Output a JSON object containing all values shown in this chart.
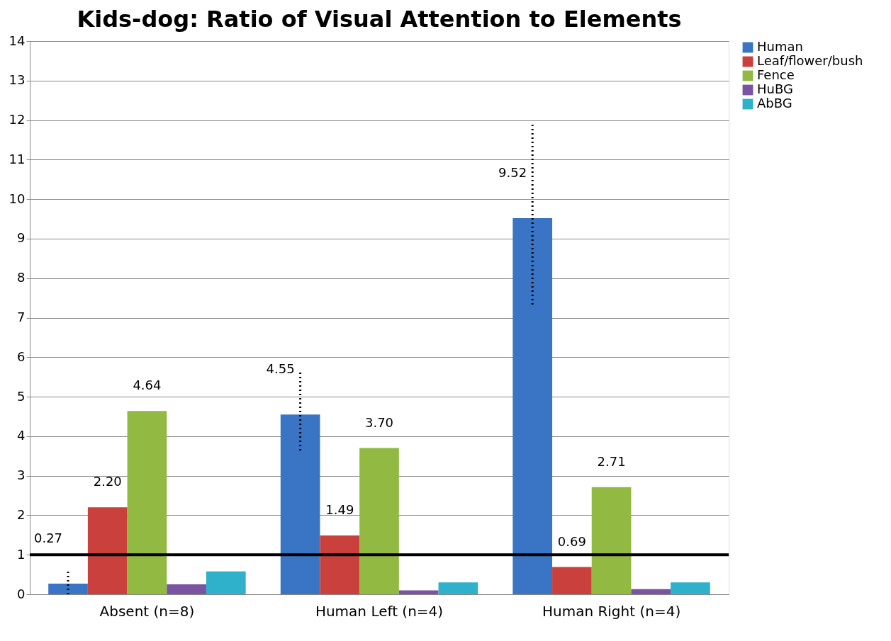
{
  "chart_data": {
    "type": "bar",
    "title": "Kids-dog: Ratio of Visual Attention to Elements",
    "categories": [
      "Absent (n=8)",
      "Human Left (n=4)",
      "Human Right (n=4)"
    ],
    "series": [
      {
        "name": "Human",
        "color": "#3a74c4",
        "values": [
          0.27,
          4.55,
          9.52
        ],
        "errors": [
          [
            0,
            0.57
          ],
          [
            3.64,
            5.66
          ],
          [
            7.33,
            11.88
          ]
        ],
        "value_labels": [
          "0.27",
          "4.55",
          "9.52"
        ]
      },
      {
        "name": "Leaf/flower/bush",
        "color": "#c9403c",
        "values": [
          2.2,
          1.49,
          0.69
        ],
        "value_labels": [
          "2.20",
          "1.49",
          "0.69"
        ]
      },
      {
        "name": "Fence",
        "color": "#92b941",
        "values": [
          4.64,
          3.7,
          2.71
        ],
        "value_labels": [
          "4.64",
          "3.70",
          "2.71"
        ]
      },
      {
        "name": "HuBG",
        "color": "#7a53a2",
        "values": [
          0.25,
          0.1,
          0.13
        ]
      },
      {
        "name": "AbBG",
        "color": "#2fb0cb",
        "values": [
          0.58,
          0.3,
          0.3
        ]
      }
    ],
    "ylim": [
      0,
      14
    ],
    "yticks": [
      0,
      1,
      2,
      3,
      4,
      5,
      6,
      7,
      8,
      9,
      10,
      11,
      12,
      13,
      14
    ],
    "grid": "y",
    "legend": "right",
    "ref_lines": [
      {
        "axis": "y",
        "value": 1,
        "color": "#000000",
        "line_style": "solid"
      }
    ]
  }
}
